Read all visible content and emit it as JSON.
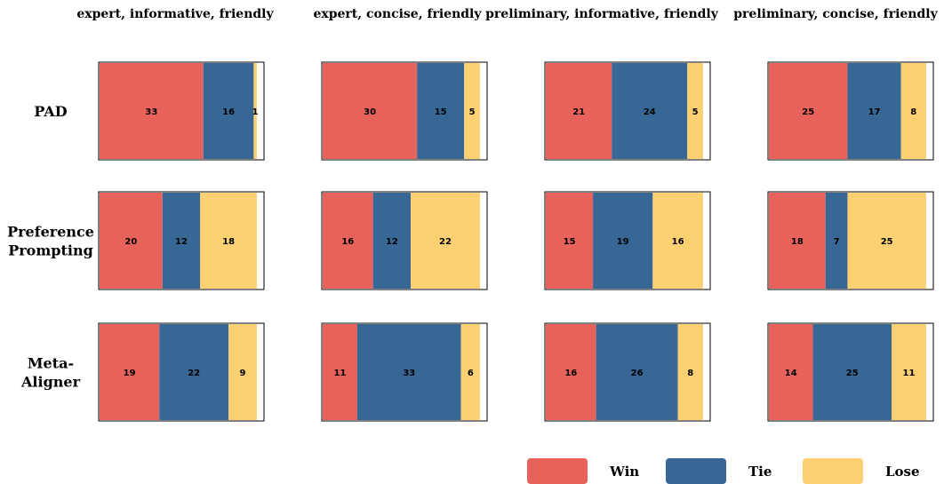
{
  "chart_data": {
    "type": "bar",
    "orientation": "horizontal-stacked",
    "columns": [
      "expert, informative, friendly",
      "expert, concise, friendly",
      "preliminary, informative, friendly",
      "preliminary, concise, friendly"
    ],
    "rows": [
      {
        "label": [
          "PAD"
        ]
      },
      {
        "label": [
          "Preference",
          "Prompting"
        ]
      },
      {
        "label": [
          "Meta-",
          "Aligner"
        ]
      }
    ],
    "series": [
      {
        "name": "Win",
        "color": "#e6625a"
      },
      {
        "name": "Tie",
        "color": "#376795"
      },
      {
        "name": "Lose",
        "color": "#fdd071"
      }
    ],
    "values": [
      [
        [
          33,
          16,
          1
        ],
        [
          30,
          15,
          5
        ],
        [
          21,
          24,
          5
        ],
        [
          25,
          17,
          8
        ]
      ],
      [
        [
          20,
          12,
          18
        ],
        [
          16,
          12,
          22
        ],
        [
          15,
          19,
          16
        ],
        [
          18,
          7,
          25
        ]
      ],
      [
        [
          19,
          22,
          9
        ],
        [
          11,
          33,
          6
        ],
        [
          16,
          26,
          8
        ],
        [
          14,
          25,
          11
        ]
      ]
    ],
    "xlim": [
      0,
      52
    ],
    "legend_position": "bottom-right"
  }
}
